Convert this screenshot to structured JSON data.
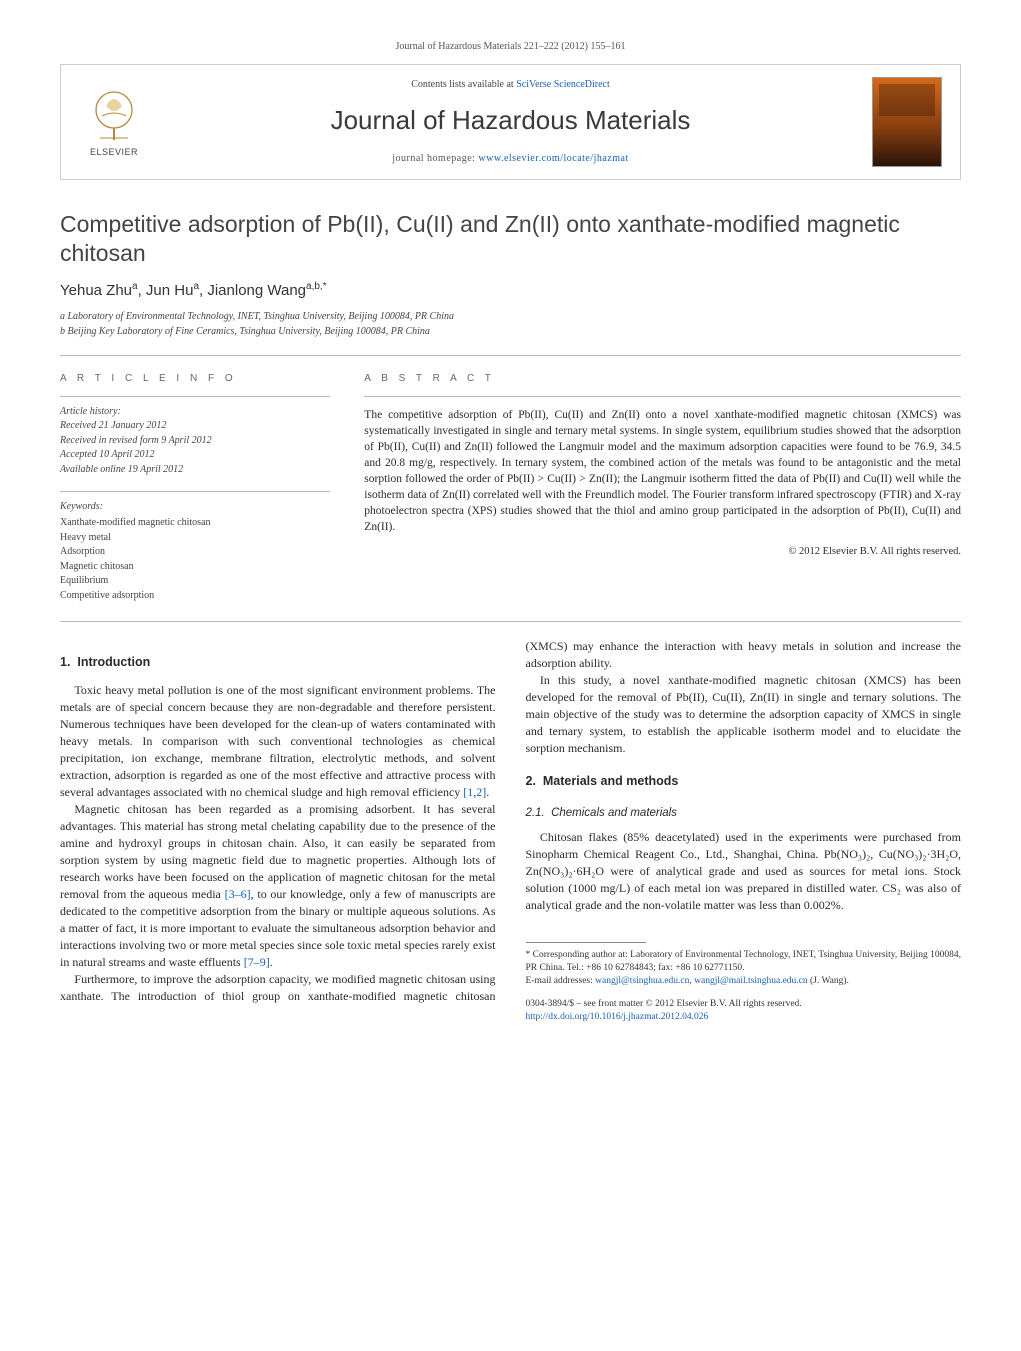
{
  "running_head": "Journal of Hazardous Materials 221–222 (2012) 155–161",
  "header": {
    "contents_prefix": "Contents lists available at ",
    "contents_link": "SciVerse ScienceDirect",
    "journal_name": "Journal of Hazardous Materials",
    "home_prefix": "journal homepage: ",
    "home_link": "www.elsevier.com/locate/jhazmat",
    "elsevier_wordmark": "ELSEVIER"
  },
  "title": "Competitive adsorption of Pb(II), Cu(II) and Zn(II) onto xanthate-modified magnetic chitosan",
  "authors_html": "Yehua Zhu<sup>a</sup>, Jun Hu<sup>a</sup>, Jianlong Wang<sup>a,b,*</sup>",
  "affiliations": [
    "a Laboratory of Environmental Technology, INET, Tsinghua University, Beijing 100084, PR China",
    "b Beijing Key Laboratory of Fine Ceramics, Tsinghua University, Beijing 100084, PR China"
  ],
  "article_info": {
    "heading": "A R T I C L E   I N F O",
    "history_head": "Article history:",
    "history": [
      "Received 21 January 2012",
      "Received in revised form 9 April 2012",
      "Accepted 10 April 2012",
      "Available online 19 April 2012"
    ],
    "keywords_head": "Keywords:",
    "keywords": [
      "Xanthate-modified magnetic chitosan",
      "Heavy metal",
      "Adsorption",
      "Magnetic chitosan",
      "Equilibrium",
      "Competitive adsorption"
    ]
  },
  "abstract": {
    "heading": "A B S T R A C T",
    "text": "The competitive adsorption of Pb(II), Cu(II) and Zn(II) onto a novel xanthate-modified magnetic chitosan (XMCS) was systematically investigated in single and ternary metal systems. In single system, equilibrium studies showed that the adsorption of Pb(II), Cu(II) and Zn(II) followed the Langmuir model and the maximum adsorption capacities were found to be 76.9, 34.5 and 20.8 mg/g, respectively. In ternary system, the combined action of the metals was found to be antagonistic and the metal sorption followed the order of Pb(II) > Cu(II) > Zn(II); the Langmuir isotherm fitted the data of Pb(II) and Cu(II) well while the isotherm data of Zn(II) correlated well with the Freundlich model. The Fourier transform infrared spectroscopy (FTIR) and X-ray photoelectron spectra (XPS) studies showed that the thiol and amino group participated in the adsorption of Pb(II), Cu(II) and Zn(II).",
    "copyright": "© 2012 Elsevier B.V. All rights reserved."
  },
  "sections": {
    "s1": {
      "num": "1.",
      "title": "Introduction"
    },
    "s1p1": "Toxic heavy metal pollution is one of the most significant environment problems. The metals are of special concern because they are non-degradable and therefore persistent. Numerous techniques have been developed for the clean-up of waters contaminated with heavy metals. In comparison with such conventional technologies as chemical precipitation, ion exchange, membrane filtration, electrolytic methods, and solvent extraction, adsorption is regarded as one of the most effective and attractive process with several advantages associated with no chemical sludge and high removal efficiency ",
    "s1p1_ref": "[1,2]",
    "s1p2a": "Magnetic chitosan has been regarded as a promising adsorbent. It has several advantages. This material has strong metal chelating capability due to the presence of the amine and hydroxyl groups in chitosan chain. Also, it can easily be separated from sorption system by using magnetic field due to magnetic properties. Although lots of research works have been focused on the application of magnetic chitosan for the metal removal from the aqueous media ",
    "s1p2_ref": "[3–6]",
    "s1p2b": ", to our knowledge, only a few of manuscripts are dedicated to the competitive adsorption from the binary or multiple aqueous solutions. As a matter of fact, it is more important to evaluate the simultaneous adsorption behavior and interactions involving two or more metal species since sole toxic metal species rarely exist in natural streams and waste effluents ",
    "s1p2_ref2": "[7–9]",
    "s1p3": "Furthermore, to improve the adsorption capacity, we modified magnetic chitosan using xanthate. The introduction of thiol group on xanthate-modified magnetic chitosan (XMCS) may enhance the interaction with heavy metals in solution and increase the adsorption ability.",
    "s1p4": "In this study, a novel xanthate-modified magnetic chitosan (XMCS) has been developed for the removal of Pb(II), Cu(II), Zn(II) in single and ternary solutions. The main objective of the study was to determine the adsorption capacity of XMCS in single and ternary system, to establish the applicable isotherm model and to elucidate the sorption mechanism.",
    "s2": {
      "num": "2.",
      "title": "Materials and methods"
    },
    "s21": {
      "num": "2.1.",
      "title": "Chemicals and materials"
    },
    "s21p1": "Chitosan flakes (85% deacetylated) used in the experiments were purchased from Sinopharm Chemical Reagent Co., Ltd., Shanghai, China. Pb(NO₃)₂, Cu(NO₃)₂·3H₂O, Zn(NO₃)₂·6H₂O were of analytical grade and used as sources for metal ions. Stock solution (1000 mg/L) of each metal ion was prepared in distilled water. CS₂ was also of analytical grade and the non-volatile matter was less than 0.002%."
  },
  "footnote": {
    "corr": "* Corresponding author at: Laboratory of Environmental Technology, INET, Tsinghua University, Beijing 100084, PR China. Tel.: +86 10 62784843; fax: +86 10 62771150.",
    "email_label": "E-mail addresses: ",
    "email1": "wangjl@tsinghua.edu.cn",
    "email_sep": ", ",
    "email2": "wangjl@mail.tsinghua.edu.cn",
    "email_tail": " (J. Wang)."
  },
  "doi": {
    "line1": "0304-3894/$ – see front matter © 2012 Elsevier B.V. All rights reserved.",
    "link": "http://dx.doi.org/10.1016/j.jhazmat.2012.04.026"
  },
  "colors": {
    "link": "#1a5fb4",
    "text": "#2a2a2a",
    "muted": "#555",
    "rule": "#bbb"
  }
}
